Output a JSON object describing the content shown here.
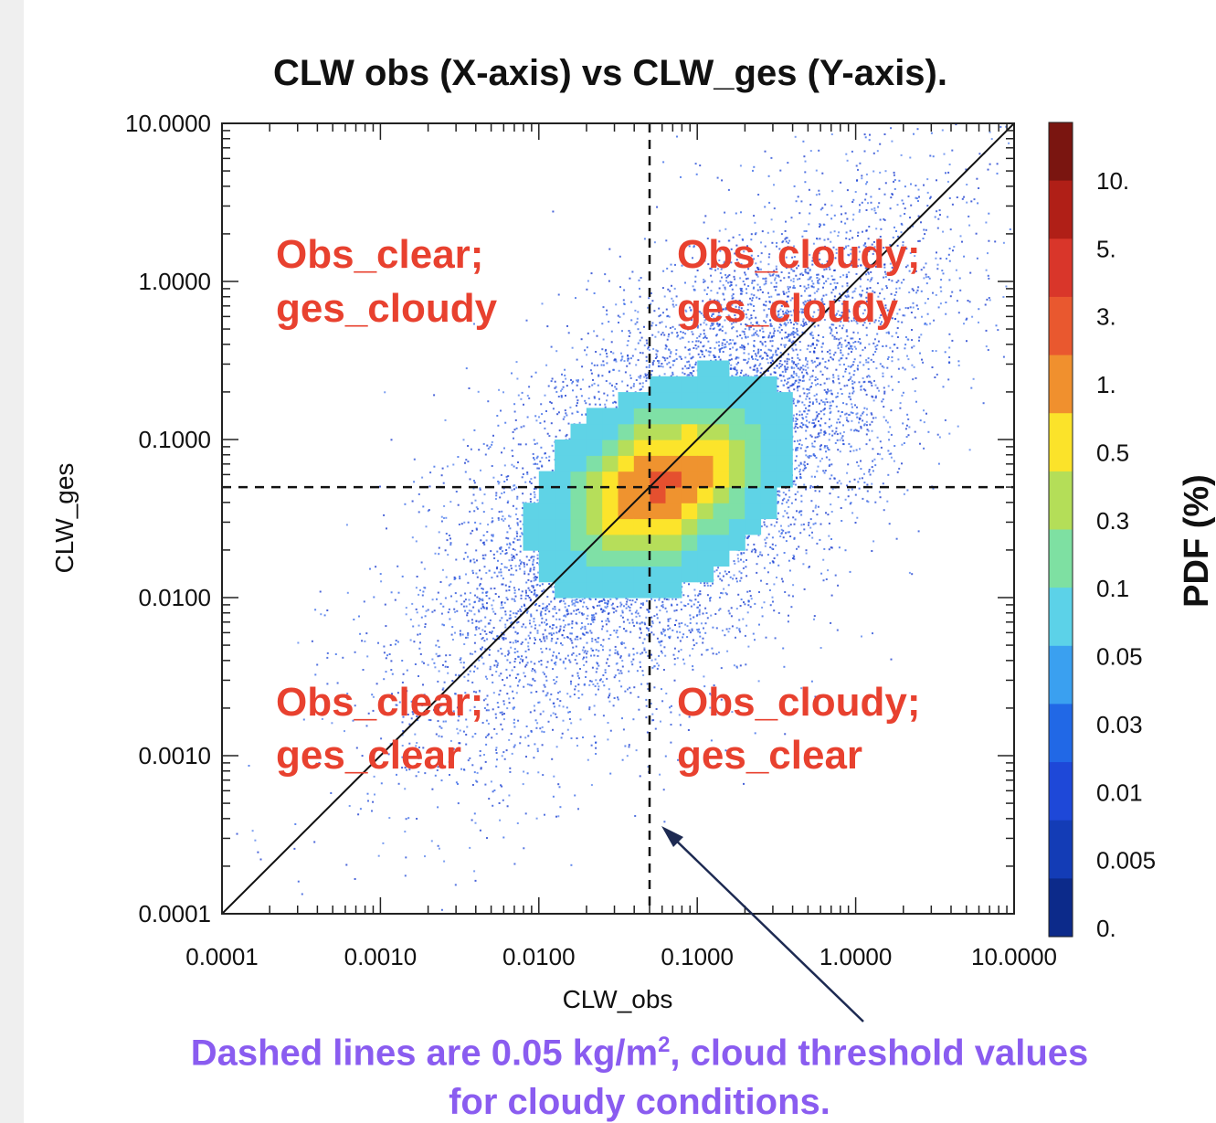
{
  "chart_data": {
    "type": "heatmap",
    "title": "CLW obs (X-axis) vs CLW_ges (Y-axis).",
    "xlabel": "CLW_obs",
    "ylabel": "CLW_ges",
    "x_scale": "log",
    "y_scale": "log",
    "xlim": [
      0.0001,
      10.0
    ],
    "ylim": [
      0.0001,
      10.0
    ],
    "x_tick_labels": [
      "0.0001",
      "0.0010",
      "0.0100",
      "0.1000",
      "1.0000",
      "10.0000"
    ],
    "y_tick_labels": [
      "0.0001",
      "0.0010",
      "0.0100",
      "0.1000",
      "1.0000",
      "10.0000"
    ],
    "x_tick_values": [
      0.0001,
      0.001,
      0.01,
      0.1,
      1.0,
      10.0
    ],
    "y_tick_values": [
      0.0001,
      0.001,
      0.01,
      0.1,
      1.0,
      10.0
    ],
    "threshold_x": 0.05,
    "threshold_y": 0.05,
    "diagonal": "y = x",
    "colorbar": {
      "label": "PDF (%)",
      "labels": [
        "10.",
        "5.",
        "3.",
        "1.",
        "0.5",
        "0.3",
        "0.1",
        "0.05",
        "0.03",
        "0.01",
        "0.005",
        "0."
      ],
      "colors": [
        "#7a1510",
        "#b01f17",
        "#d9362a",
        "#e9582f",
        "#f0902e",
        "#fbe32a",
        "#b4de58",
        "#7ee0a2",
        "#5cd2e8",
        "#3aa0f0",
        "#2168e6",
        "#1e48d8",
        "#133cb6",
        "#0c2a8a"
      ]
    },
    "quadrant_labels": [
      {
        "line1": "Obs_clear;",
        "line2": "ges_cloudy"
      },
      {
        "line1": "Obs_cloudy;",
        "line2": "ges_cloudy"
      },
      {
        "line1": "Obs_clear;",
        "line2": "ges_clear"
      },
      {
        "line1": "Obs_cloudy;",
        "line2": "ges_clear"
      }
    ],
    "density_core": {
      "peak": [
        0.08,
        0.065
      ],
      "levels_pdf": [
        0.05,
        0.1,
        0.3,
        0.5,
        1.0,
        3.0
      ]
    }
  },
  "caption": {
    "line1_pre": "Dashed lines are 0.05 kg/m",
    "sup": "2",
    "line1_post": ", cloud threshold values",
    "line2": "for cloudy conditions."
  }
}
